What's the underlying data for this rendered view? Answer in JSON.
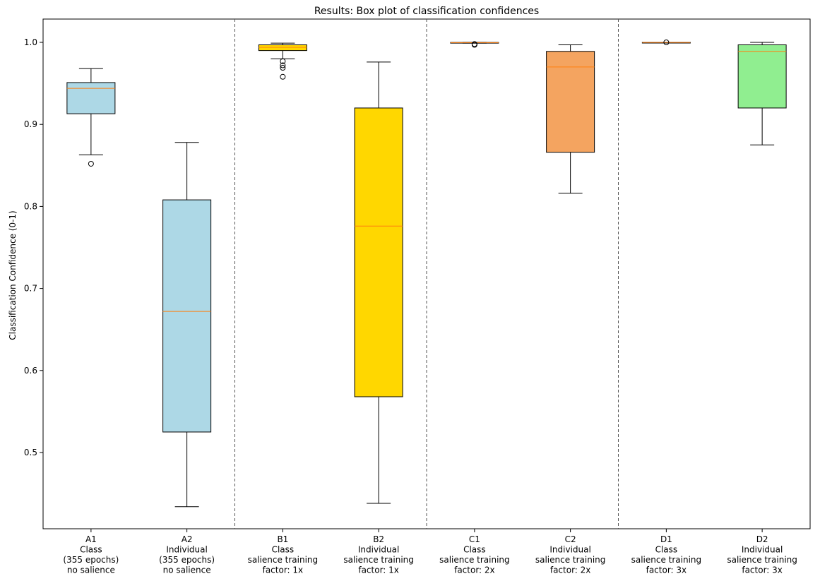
{
  "chart_data": {
    "type": "box",
    "title": "Results: Box plot of classification confidences",
    "xlabel": "",
    "ylabel": "Classification Confidence (0-1)",
    "ylim": [
      0.39,
      1.03
    ],
    "yticks": [
      "0.5",
      "0.6",
      "0.7",
      "0.8",
      "0.9",
      "1.0"
    ],
    "yticks_values": [
      0.5,
      0.6,
      0.7,
      0.8,
      0.9,
      1.0
    ],
    "group_separators_after": [
      2,
      4,
      6
    ],
    "median_color": "#ff7f0e",
    "categories": [
      {
        "lines": [
          "A1",
          "Class",
          "(355 epochs)",
          "no salience"
        ],
        "color": "#add8e6",
        "whisker_low": 0.863,
        "q1": 0.913,
        "median": 0.944,
        "q3": 0.951,
        "whisker_high": 0.968,
        "outliers": [
          0.852
        ]
      },
      {
        "lines": [
          "A2",
          "Individual",
          "(355 epochs)",
          "no salience"
        ],
        "color": "#add8e6",
        "whisker_low": 0.434,
        "q1": 0.525,
        "median": 0.672,
        "q3": 0.808,
        "whisker_high": 0.878,
        "outliers": []
      },
      {
        "lines": [
          "B1",
          "Class",
          "salience training",
          "factor: 1x"
        ],
        "color": "#ffd700",
        "whisker_low": 0.98,
        "q1": 0.99,
        "median": 0.994,
        "q3": 0.997,
        "whisker_high": 0.999,
        "outliers": [
          0.977,
          0.972,
          0.969,
          0.958
        ]
      },
      {
        "lines": [
          "B2",
          "Individual",
          "salience training",
          "factor: 1x"
        ],
        "color": "#ffd700",
        "whisker_low": 0.438,
        "q1": 0.568,
        "median": 0.776,
        "q3": 0.92,
        "whisker_high": 0.976,
        "outliers": []
      },
      {
        "lines": [
          "C1",
          "Class",
          "salience training",
          "factor: 2x"
        ],
        "color": "#f4a460",
        "whisker_low": 0.999,
        "q1": 0.9992,
        "median": 0.9996,
        "q3": 0.9999,
        "whisker_high": 1.0,
        "outliers": [
          0.998,
          0.997
        ]
      },
      {
        "lines": [
          "C2",
          "Individual",
          "salience training",
          "factor: 2x"
        ],
        "color": "#f4a460",
        "whisker_low": 0.816,
        "q1": 0.866,
        "median": 0.97,
        "q3": 0.989,
        "whisker_high": 0.997,
        "outliers": []
      },
      {
        "lines": [
          "D1",
          "Class",
          "salience training",
          "factor: 3x"
        ],
        "color": "#90ee90",
        "whisker_low": 0.9997,
        "q1": 0.9998,
        "median": 0.9999,
        "q3": 1.0,
        "whisker_high": 1.0,
        "outliers": [
          1.0
        ]
      },
      {
        "lines": [
          "D2",
          "Individual",
          "salience training",
          "factor: 3x"
        ],
        "color": "#90ee90",
        "whisker_low": 0.875,
        "q1": 0.92,
        "median": 0.989,
        "q3": 0.997,
        "whisker_high": 1.0,
        "outliers": []
      }
    ]
  }
}
